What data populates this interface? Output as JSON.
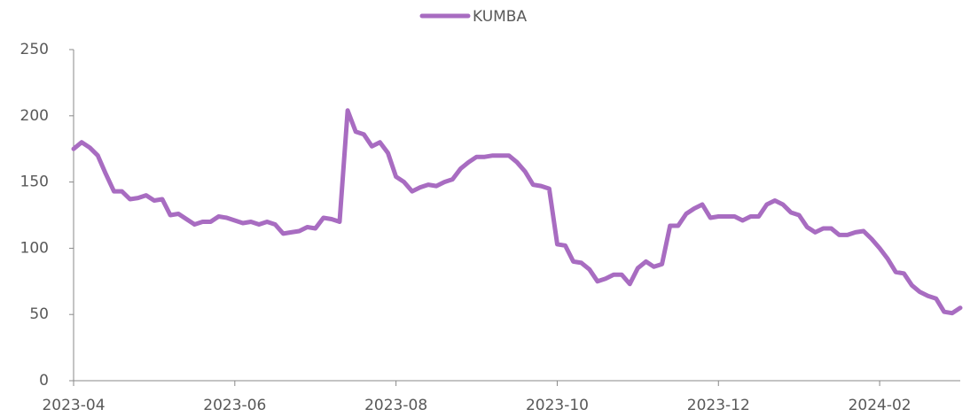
{
  "chart_data": {
    "type": "line",
    "categories": [
      "2023-04",
      null,
      null,
      null,
      null,
      null,
      null,
      null,
      null,
      null,
      null,
      null,
      null,
      null,
      null,
      null,
      null,
      null,
      null,
      null,
      "2023-06",
      null,
      null,
      null,
      null,
      null,
      null,
      null,
      null,
      null,
      null,
      null,
      null,
      null,
      null,
      null,
      null,
      null,
      null,
      null,
      "2023-08",
      null,
      null,
      null,
      null,
      null,
      null,
      null,
      null,
      null,
      null,
      null,
      null,
      null,
      null,
      null,
      null,
      null,
      null,
      null,
      "2023-10",
      null,
      null,
      null,
      null,
      null,
      null,
      null,
      null,
      null,
      null,
      null,
      null,
      null,
      null,
      null,
      null,
      null,
      null,
      null,
      "2023-12",
      null,
      null,
      null,
      null,
      null,
      null,
      null,
      null,
      null,
      null,
      null,
      null,
      null,
      null,
      null,
      null,
      null,
      null,
      null,
      "2024-02",
      null,
      null,
      null,
      null,
      null,
      null,
      null,
      null,
      null,
      null
    ],
    "series": [
      {
        "name": "KUMBA",
        "color": "#a86cc1",
        "values": [
          175,
          180,
          176,
          170,
          156,
          143,
          143,
          137,
          138,
          140,
          136,
          137,
          125,
          126,
          122,
          118,
          120,
          120,
          124,
          123,
          121,
          119,
          120,
          118,
          120,
          118,
          111,
          112,
          113,
          116,
          115,
          123,
          122,
          120,
          204,
          188,
          186,
          177,
          180,
          172,
          154,
          150,
          143,
          146,
          148,
          147,
          150,
          152,
          160,
          165,
          169,
          169,
          170,
          170,
          170,
          165,
          158,
          148,
          147,
          145,
          103,
          102,
          90,
          89,
          84,
          75,
          77,
          80,
          80,
          73,
          85,
          90,
          86,
          88,
          117,
          117,
          126,
          130,
          133,
          123,
          124,
          124,
          124,
          121,
          124,
          124,
          133,
          136,
          133,
          127,
          125,
          116,
          112,
          115,
          115,
          110,
          110,
          112,
          113,
          107,
          100,
          92,
          82,
          81,
          72,
          67,
          64,
          62,
          52,
          51,
          55
        ]
      }
    ],
    "ylim": [
      0,
      250
    ],
    "yticks": [
      0,
      50,
      100,
      150,
      200,
      250
    ],
    "legend": "top"
  }
}
